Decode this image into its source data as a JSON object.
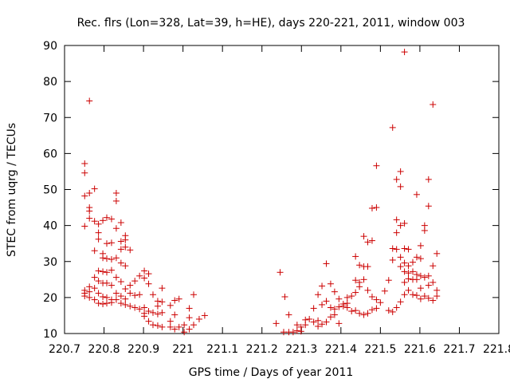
{
  "chart_data": {
    "type": "scatter",
    "title": "Rec. flrs (Lon=328, Lat=39, h=HE), days 220-221, 2011, window 003",
    "xlabel": "GPS time / Days of year 2011",
    "ylabel": "STEC from uqrg / TECUs",
    "xlim": [
      220.7,
      221.8
    ],
    "ylim": [
      10,
      90
    ],
    "xticks": [
      220.7,
      220.8,
      220.9,
      221.0,
      221.1,
      221.2,
      221.3,
      221.4,
      221.5,
      221.6,
      221.7,
      221.8
    ],
    "xtick_labels": [
      "220.7",
      "220.8",
      "220.9",
      "221",
      "221.1",
      "221.2",
      "221.3",
      "221.4",
      "221.5",
      "221.6",
      "221.7",
      "221.8"
    ],
    "yticks": [
      10,
      20,
      30,
      40,
      50,
      60,
      70,
      80,
      90
    ],
    "ytick_labels": [
      "10",
      "20",
      "30",
      "40",
      "50",
      "60",
      "70",
      "80",
      "90"
    ],
    "grid": false,
    "marker": "+",
    "color": "#cc0000",
    "series": [
      {
        "points": [
          [
            220.751,
            57.2
          ],
          [
            220.751,
            54.6
          ],
          [
            220.751,
            48.2
          ],
          [
            220.751,
            39.8
          ],
          [
            220.751,
            22.0
          ],
          [
            220.751,
            21.2
          ],
          [
            220.751,
            20.4
          ],
          [
            220.763,
            74.6
          ],
          [
            220.763,
            49.0
          ],
          [
            220.763,
            45.0
          ],
          [
            220.763,
            44.0
          ],
          [
            220.763,
            42.0
          ],
          [
            220.763,
            23.0
          ],
          [
            220.763,
            21.6
          ],
          [
            220.763,
            20.0
          ],
          [
            220.776,
            50.2
          ],
          [
            220.776,
            41.2
          ],
          [
            220.776,
            33.0
          ],
          [
            220.776,
            25.6
          ],
          [
            220.776,
            22.6
          ],
          [
            220.776,
            19.4
          ],
          [
            220.786,
            40.4
          ],
          [
            220.786,
            38.0
          ],
          [
            220.786,
            36.2
          ],
          [
            220.786,
            27.4
          ],
          [
            220.786,
            24.6
          ],
          [
            220.786,
            21.2
          ],
          [
            220.786,
            18.4
          ],
          [
            220.797,
            41.4
          ],
          [
            220.797,
            32.2
          ],
          [
            220.797,
            31.0
          ],
          [
            220.797,
            27.2
          ],
          [
            220.797,
            24.0
          ],
          [
            220.797,
            20.2
          ],
          [
            220.797,
            18.2
          ],
          [
            220.807,
            42.2
          ],
          [
            220.807,
            35.0
          ],
          [
            220.807,
            30.8
          ],
          [
            220.807,
            27.0
          ],
          [
            220.807,
            24.0
          ],
          [
            220.807,
            20.0
          ],
          [
            220.807,
            18.4
          ],
          [
            220.819,
            41.8
          ],
          [
            220.819,
            35.2
          ],
          [
            220.819,
            30.6
          ],
          [
            220.819,
            27.6
          ],
          [
            220.819,
            23.4
          ],
          [
            220.819,
            19.4
          ],
          [
            220.819,
            18.6
          ],
          [
            220.831,
            49.0
          ],
          [
            220.831,
            46.8
          ],
          [
            220.831,
            39.2
          ],
          [
            220.831,
            31.0
          ],
          [
            220.831,
            25.6
          ],
          [
            220.831,
            21.2
          ],
          [
            220.831,
            19.4
          ],
          [
            220.843,
            40.8
          ],
          [
            220.843,
            35.6
          ],
          [
            220.843,
            33.4
          ],
          [
            220.843,
            29.6
          ],
          [
            220.843,
            24.4
          ],
          [
            220.843,
            20.4
          ],
          [
            220.843,
            18.4
          ],
          [
            220.854,
            37.2
          ],
          [
            220.854,
            36.0
          ],
          [
            220.854,
            34.0
          ],
          [
            220.854,
            28.8
          ],
          [
            220.854,
            22.4
          ],
          [
            220.854,
            19.6
          ],
          [
            220.854,
            18.0
          ],
          [
            220.866,
            33.2
          ],
          [
            220.866,
            23.4
          ],
          [
            220.866,
            21.2
          ],
          [
            220.866,
            17.6
          ],
          [
            220.878,
            24.6
          ],
          [
            220.878,
            20.6
          ],
          [
            220.878,
            17.2
          ],
          [
            220.89,
            26.0
          ],
          [
            220.89,
            20.8
          ],
          [
            220.89,
            16.8
          ],
          [
            220.902,
            27.4
          ],
          [
            220.902,
            25.4
          ],
          [
            220.902,
            17.2
          ],
          [
            220.902,
            15.6
          ],
          [
            220.902,
            14.8
          ],
          [
            220.913,
            26.6
          ],
          [
            220.913,
            23.8
          ],
          [
            220.913,
            16.2
          ],
          [
            220.913,
            13.4
          ],
          [
            220.924,
            20.8
          ],
          [
            220.924,
            15.8
          ],
          [
            220.924,
            12.4
          ],
          [
            220.936,
            19.0
          ],
          [
            220.936,
            17.6
          ],
          [
            220.936,
            15.4
          ],
          [
            220.936,
            12.2
          ],
          [
            220.947,
            22.6
          ],
          [
            220.947,
            18.8
          ],
          [
            220.947,
            15.8
          ],
          [
            220.947,
            11.8
          ],
          [
            220.968,
            17.8
          ],
          [
            220.968,
            13.4
          ],
          [
            220.968,
            11.8
          ],
          [
            220.979,
            19.2
          ],
          [
            220.979,
            15.2
          ],
          [
            220.979,
            11.2
          ],
          [
            220.99,
            19.6
          ],
          [
            220.99,
            11.8
          ],
          [
            221.003,
            12.4
          ],
          [
            221.003,
            10.4
          ],
          [
            221.016,
            17.0
          ],
          [
            221.016,
            14.4
          ],
          [
            221.016,
            11.2
          ],
          [
            221.027,
            20.8
          ],
          [
            221.027,
            12.4
          ],
          [
            221.041,
            14.0
          ],
          [
            221.055,
            15.0
          ],
          [
            221.236,
            12.8
          ],
          [
            221.246,
            27.0
          ],
          [
            221.255,
            10.4
          ],
          [
            221.258,
            20.2
          ],
          [
            221.268,
            15.2
          ],
          [
            221.268,
            10.4
          ],
          [
            221.279,
            10.4
          ],
          [
            221.289,
            12.4
          ],
          [
            221.289,
            10.8
          ],
          [
            221.299,
            11.8
          ],
          [
            221.299,
            10.6
          ],
          [
            221.31,
            13.8
          ],
          [
            221.31,
            12.4
          ],
          [
            221.32,
            14.0
          ],
          [
            221.331,
            17.0
          ],
          [
            221.331,
            13.2
          ],
          [
            221.342,
            20.8
          ],
          [
            221.342,
            12.0
          ],
          [
            221.342,
            13.6
          ],
          [
            221.352,
            23.2
          ],
          [
            221.352,
            18.0
          ],
          [
            221.352,
            12.6
          ],
          [
            221.363,
            29.4
          ],
          [
            221.363,
            19.0
          ],
          [
            221.363,
            13.2
          ],
          [
            221.374,
            23.8
          ],
          [
            221.374,
            17.2
          ],
          [
            221.374,
            14.6
          ],
          [
            221.384,
            21.6
          ],
          [
            221.384,
            16.8
          ],
          [
            221.384,
            15.2
          ],
          [
            221.395,
            19.6
          ],
          [
            221.395,
            17.4
          ],
          [
            221.395,
            12.8
          ],
          [
            221.406,
            18.2
          ],
          [
            221.406,
            17.6
          ],
          [
            221.416,
            20.0
          ],
          [
            221.416,
            18.4
          ],
          [
            221.416,
            17.2
          ],
          [
            221.427,
            20.4
          ],
          [
            221.427,
            16.2
          ],
          [
            221.437,
            31.4
          ],
          [
            221.437,
            24.8
          ],
          [
            221.437,
            21.4
          ],
          [
            221.437,
            16.4
          ],
          [
            221.447,
            29.0
          ],
          [
            221.447,
            24.2
          ],
          [
            221.447,
            23.0
          ],
          [
            221.447,
            15.6
          ],
          [
            221.458,
            37.0
          ],
          [
            221.458,
            28.6
          ],
          [
            221.458,
            25.0
          ],
          [
            221.458,
            15.2
          ],
          [
            221.468,
            35.4
          ],
          [
            221.468,
            28.6
          ],
          [
            221.468,
            22.0
          ],
          [
            221.468,
            15.6
          ],
          [
            221.479,
            44.8
          ],
          [
            221.479,
            35.8
          ],
          [
            221.479,
            20.2
          ],
          [
            221.479,
            16.6
          ],
          [
            221.49,
            56.6
          ],
          [
            221.49,
            45.0
          ],
          [
            221.49,
            19.4
          ],
          [
            221.49,
            17.0
          ],
          [
            221.5,
            18.6
          ],
          [
            221.511,
            21.8
          ],
          [
            221.521,
            24.8
          ],
          [
            221.521,
            16.4
          ],
          [
            221.531,
            67.2
          ],
          [
            221.531,
            33.6
          ],
          [
            221.531,
            30.4
          ],
          [
            221.531,
            16.0
          ],
          [
            221.541,
            52.8
          ],
          [
            221.541,
            41.6
          ],
          [
            221.541,
            38.0
          ],
          [
            221.541,
            33.4
          ],
          [
            221.541,
            17.2
          ],
          [
            221.551,
            55.0
          ],
          [
            221.551,
            50.8
          ],
          [
            221.551,
            40.0
          ],
          [
            221.551,
            31.2
          ],
          [
            221.551,
            28.6
          ],
          [
            221.551,
            18.8
          ],
          [
            221.561,
            88.2
          ],
          [
            221.561,
            40.6
          ],
          [
            221.561,
            33.6
          ],
          [
            221.561,
            29.6
          ],
          [
            221.561,
            27.2
          ],
          [
            221.561,
            24.2
          ],
          [
            221.561,
            20.8
          ],
          [
            221.571,
            33.4
          ],
          [
            221.571,
            28.8
          ],
          [
            221.571,
            26.8
          ],
          [
            221.571,
            25.2
          ],
          [
            221.571,
            22.0
          ],
          [
            221.582,
            29.8
          ],
          [
            221.582,
            27.2
          ],
          [
            221.582,
            25.0
          ],
          [
            221.582,
            20.8
          ],
          [
            221.592,
            48.6
          ],
          [
            221.592,
            31.2
          ],
          [
            221.592,
            26.4
          ],
          [
            221.592,
            25.0
          ],
          [
            221.592,
            20.6
          ],
          [
            221.602,
            34.4
          ],
          [
            221.602,
            30.8
          ],
          [
            221.602,
            26.0
          ],
          [
            221.602,
            22.6
          ],
          [
            221.602,
            19.6
          ],
          [
            221.612,
            40.0
          ],
          [
            221.612,
            38.6
          ],
          [
            221.612,
            25.6
          ],
          [
            221.612,
            20.4
          ],
          [
            221.622,
            52.8
          ],
          [
            221.622,
            45.4
          ],
          [
            221.622,
            26.0
          ],
          [
            221.622,
            23.4
          ],
          [
            221.622,
            19.8
          ],
          [
            221.633,
            73.6
          ],
          [
            221.633,
            28.8
          ],
          [
            221.633,
            24.2
          ],
          [
            221.633,
            19.2
          ],
          [
            221.643,
            32.2
          ],
          [
            221.643,
            22.0
          ],
          [
            221.643,
            20.4
          ]
        ]
      }
    ]
  }
}
